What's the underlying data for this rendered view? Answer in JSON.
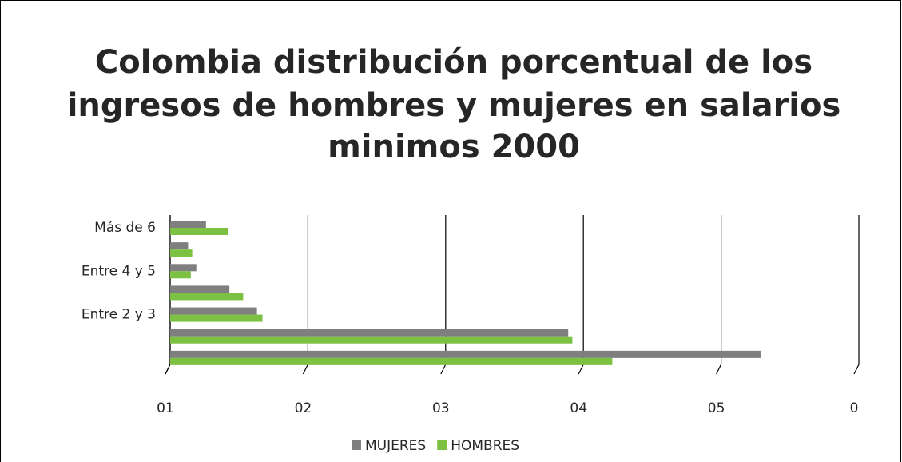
{
  "chart_data": {
    "type": "hbar",
    "title": [
      "Colombia distribución porcentual de los",
      "ingresos de hombres y mujeres en salarios",
      "minimos 2000"
    ],
    "categories": [
      null,
      null,
      "Entre 2 y 3",
      null,
      "Entre 4 y 5",
      null,
      "Más de 6"
    ],
    "series": [
      {
        "name": "MUJERES",
        "color": "#7f7f7f",
        "values": [
          42.9,
          28.9,
          6.3,
          4.3,
          1.9,
          1.3,
          2.6
        ]
      },
      {
        "name": "HOMBRES",
        "color": "#7cc142",
        "values": [
          32.1,
          29.2,
          6.7,
          5.3,
          1.5,
          1.6,
          4.2
        ]
      }
    ],
    "xlim": [
      0,
      50
    ],
    "xticks": [
      {
        "value": 0,
        "label": "01"
      },
      {
        "value": 10,
        "label": "02"
      },
      {
        "value": 20,
        "label": "03"
      },
      {
        "value": 30,
        "label": "04"
      },
      {
        "value": 40,
        "label": "05"
      },
      {
        "value": 50,
        "label": "0"
      }
    ],
    "grid": true,
    "legend": "bottom"
  }
}
